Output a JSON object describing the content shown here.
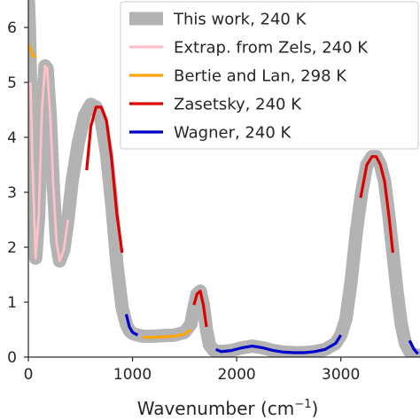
{
  "chart_data": {
    "type": "line",
    "xlabel": "Wavenumber (cm",
    "xlabel_sup": "−1",
    "xlabel_tail": ")",
    "ylabel": "",
    "xlim": [
      0,
      3760
    ],
    "ylim": [
      0,
      6.5
    ],
    "xticks": [
      0,
      1000,
      2000,
      3000
    ],
    "xtick_labels": [
      "0",
      "1000",
      "2000",
      "3000"
    ],
    "yticks": [
      0,
      1,
      2,
      3,
      4,
      5,
      6
    ],
    "ytick_labels": [
      "0",
      "1",
      "2",
      "3",
      "4",
      "5",
      "6"
    ],
    "grid": false,
    "legend_position": "top-right",
    "series": [
      {
        "name": "This work, 240 K",
        "color": "#b3b3b3",
        "x": [
          0,
          10,
          20,
          40,
          70,
          100,
          130,
          160,
          180,
          210,
          240,
          270,
          300,
          340,
          380,
          420,
          480,
          540,
          600,
          650,
          700,
          750,
          800,
          850,
          900,
          940,
          970,
          1000,
          1050,
          1100,
          1200,
          1300,
          1400,
          1500,
          1560,
          1590,
          1620,
          1650,
          1680,
          1710,
          1740,
          1780,
          1850,
          1950,
          2050,
          2150,
          2250,
          2350,
          2450,
          2550,
          2650,
          2750,
          2850,
          2950,
          3000,
          3050,
          3100,
          3150,
          3200,
          3250,
          3300,
          3340,
          3380,
          3420,
          3460,
          3500,
          3540,
          3580,
          3620,
          3660,
          3700,
          3740,
          3760
        ],
        "y": [
          6.5,
          6.0,
          5.0,
          3.5,
          1.8,
          2.6,
          4.5,
          5.3,
          5.25,
          4.4,
          3.1,
          2.1,
          1.75,
          1.95,
          2.5,
          3.2,
          3.9,
          4.4,
          4.6,
          4.55,
          4.3,
          3.7,
          2.8,
          1.7,
          0.9,
          0.6,
          0.48,
          0.43,
          0.4,
          0.38,
          0.38,
          0.39,
          0.4,
          0.45,
          0.6,
          0.9,
          1.15,
          1.2,
          0.95,
          0.5,
          0.22,
          0.12,
          0.1,
          0.12,
          0.17,
          0.2,
          0.17,
          0.12,
          0.09,
          0.08,
          0.08,
          0.1,
          0.14,
          0.25,
          0.4,
          0.7,
          1.4,
          2.3,
          3.0,
          3.5,
          3.65,
          3.65,
          3.5,
          3.2,
          2.6,
          1.9,
          1.2,
          0.6,
          0.25,
          0.1,
          0.05,
          0.03,
          0.03
        ]
      },
      {
        "name": "Extrap. from Zels, 240 K",
        "color": "#ffc0cb",
        "x": [
          20,
          40,
          70,
          100,
          130,
          160,
          180,
          210,
          240,
          270,
          300,
          340,
          380
        ],
        "y": [
          5.0,
          3.5,
          1.8,
          2.6,
          4.5,
          5.3,
          5.25,
          4.4,
          3.1,
          2.1,
          1.75,
          1.95,
          2.5
        ]
      },
      {
        "name": "Bertie and Lan, 298 K",
        "color": "#ffa500",
        "x": [
          0,
          20,
          40,
          70,
          1100,
          1200,
          1300,
          1400,
          1500,
          1560
        ],
        "y": [
          5.7,
          5.6,
          5.5,
          5.45,
          0.36,
          0.36,
          0.37,
          0.38,
          0.42,
          0.5
        ]
      },
      {
        "name": "Zasetsky, 240 K",
        "color": "#dd0000",
        "x": [
          560,
          600,
          650,
          700,
          750,
          800,
          850,
          900,
          1590,
          1620,
          1650,
          1680,
          1710,
          3190,
          3250,
          3300,
          3340,
          3380,
          3420,
          3460,
          3500
        ],
        "y": [
          3.4,
          4.2,
          4.55,
          4.55,
          4.3,
          3.6,
          2.6,
          1.9,
          0.95,
          1.15,
          1.2,
          0.95,
          0.55,
          2.9,
          3.5,
          3.65,
          3.65,
          3.5,
          3.2,
          2.6,
          1.9
        ]
      },
      {
        "name": "Wagner, 240 K",
        "color": "#0000cc",
        "x": [
          940,
          970,
          1000,
          1050,
          1800,
          1850,
          1950,
          2050,
          2150,
          2250,
          2350,
          2450,
          2550,
          2650,
          2750,
          2850,
          2950,
          3000,
          3660,
          3700,
          3740
        ],
        "y": [
          0.78,
          0.55,
          0.45,
          0.4,
          0.14,
          0.1,
          0.12,
          0.17,
          0.2,
          0.17,
          0.12,
          0.09,
          0.08,
          0.08,
          0.1,
          0.14,
          0.25,
          0.4,
          0.3,
          0.15,
          0.06
        ]
      }
    ],
    "segments": {
      "3": [
        [
          0,
          8
        ],
        [
          8,
          13
        ],
        [
          13,
          21
        ]
      ],
      "4": [
        [
          0,
          4
        ],
        [
          4,
          18
        ],
        [
          18,
          21
        ]
      ],
      "2": [
        [
          0,
          4
        ],
        [
          4,
          10
        ]
      ]
    }
  }
}
